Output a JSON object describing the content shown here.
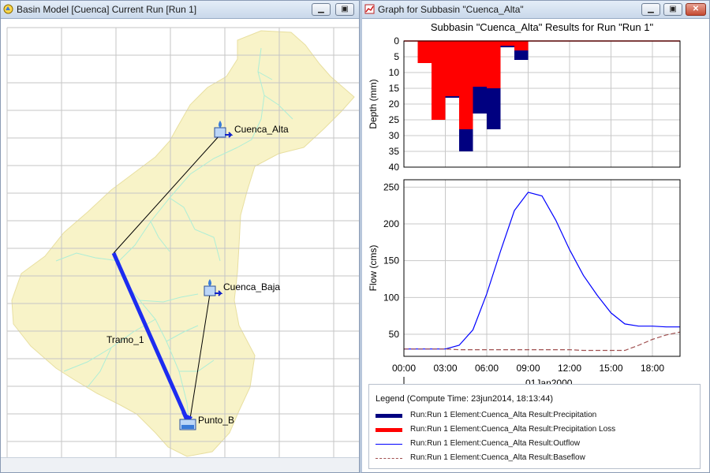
{
  "basin_window": {
    "title": "Basin Model [Cuenca]  Current Run [Run 1]",
    "elements": {
      "cuenca_alta": "Cuenca_Alta",
      "cuenca_baja": "Cuenca_Baja",
      "tramo": "Tramo_1",
      "punto": "Punto_B"
    }
  },
  "graph_window": {
    "title": "Graph for Subbasin \"Cuenca_Alta\"",
    "minimize_label": "_",
    "restore_label": "▫",
    "close_label": "✕",
    "legend": {
      "title": "Legend (Compute Time: 23jun2014, 18:13:44)",
      "items": [
        {
          "label": "Run:Run 1 Element:Cuenca_Alta Result:Precipitation",
          "color": "#000080",
          "style": "thick"
        },
        {
          "label": "Run:Run 1 Element:Cuenca_Alta Result:Precipitation Loss",
          "color": "#ff0000",
          "style": "thick"
        },
        {
          "label": "Run:Run 1 Element:Cuenca_Alta Result:Outflow",
          "color": "#0000ff",
          "style": "line"
        },
        {
          "label": "Run:Run 1 Element:Cuenca_Alta Result:Baseflow",
          "color": "#a05050",
          "style": "dashed"
        }
      ]
    }
  },
  "chart_data": [
    {
      "type": "bar",
      "title": "Subbasin \"Cuenca_Alta\" Results for Run \"Run 1\"",
      "ylabel": "Depth (mm)",
      "ylim": [
        0,
        40
      ],
      "y_inverted": true,
      "yticks": [
        0,
        5,
        10,
        15,
        20,
        25,
        30,
        35,
        40
      ],
      "xlim": [
        0,
        20
      ],
      "grid": true,
      "interval_hours": 1,
      "series": [
        {
          "name": "Run:Run 1 Element:Cuenca_Alta Result:Precipitation",
          "color": "#000080",
          "values": [
            0,
            7,
            25,
            18,
            35,
            23,
            28,
            2,
            6,
            0,
            0,
            0,
            0,
            0,
            0,
            0,
            0,
            0,
            0,
            0
          ]
        },
        {
          "name": "Run:Run 1 Element:Cuenca_Alta Result:Precipitation Loss",
          "color": "#ff0000",
          "values": [
            0,
            7,
            25,
            17.5,
            28,
            14.5,
            15,
            1.5,
            3,
            0,
            0,
            0,
            0,
            0,
            0,
            0,
            0,
            0,
            0,
            0
          ]
        }
      ]
    },
    {
      "type": "line",
      "ylabel": "Flow (cms)",
      "ylim": [
        20,
        260
      ],
      "yticks": [
        50,
        100,
        150,
        200,
        250
      ],
      "xlim": [
        0,
        20
      ],
      "xticks": [
        {
          "hour": 0,
          "label": "00:00"
        },
        {
          "hour": 3,
          "label": "03:00"
        },
        {
          "hour": 6,
          "label": "06:00"
        },
        {
          "hour": 9,
          "label": "09:00"
        },
        {
          "hour": 12,
          "label": "12:00"
        },
        {
          "hour": 15,
          "label": "15:00"
        },
        {
          "hour": 18,
          "label": "18:00"
        }
      ],
      "xdate_label": "01Jan2000",
      "grid": true,
      "series": [
        {
          "name": "Run:Run 1 Element:Cuenca_Alta Result:Outflow",
          "color": "#0000ff",
          "style": "solid",
          "x": [
            0,
            1,
            2,
            3,
            4,
            5,
            6,
            7,
            8,
            9,
            10,
            11,
            12,
            13,
            14,
            15,
            16,
            17,
            18,
            19,
            20
          ],
          "y": [
            30,
            30,
            30,
            30,
            35,
            56,
            105,
            163,
            218,
            243,
            238,
            205,
            165,
            130,
            103,
            79,
            64,
            61,
            61,
            60,
            60
          ]
        },
        {
          "name": "Run:Run 1 Element:Cuenca_Alta Result:Baseflow",
          "color": "#a05050",
          "style": "dashed",
          "x": [
            0,
            1,
            2,
            3,
            4,
            5,
            6,
            7,
            8,
            9,
            10,
            11,
            12,
            13,
            14,
            15,
            16,
            17,
            18,
            19,
            20
          ],
          "y": [
            30,
            30,
            30,
            30,
            29,
            29,
            29,
            29,
            29,
            29,
            29,
            29,
            29,
            28,
            28,
            28,
            28,
            35,
            43,
            49,
            53
          ]
        }
      ]
    }
  ]
}
